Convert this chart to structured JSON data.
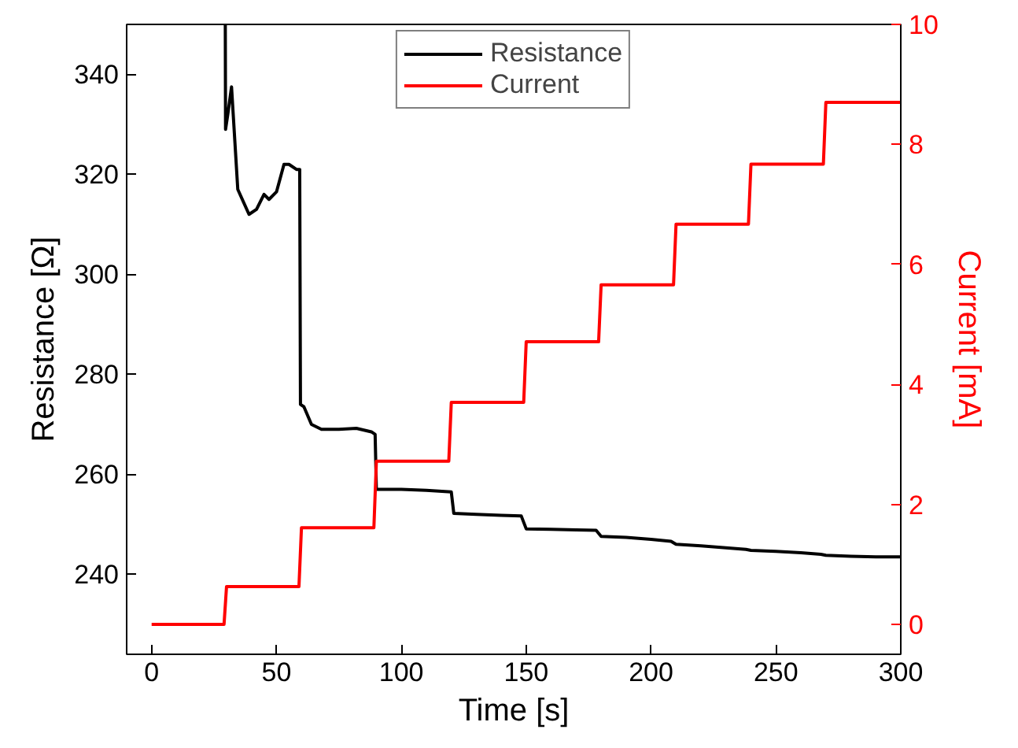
{
  "chart_data": {
    "type": "line",
    "xlabel": "Time [s]",
    "ylabel": "Resistance [Ω]",
    "y2label": "Current [mA]",
    "xlim": [
      -10,
      300
    ],
    "xticks": [
      0,
      50,
      100,
      150,
      200,
      250,
      300
    ],
    "ylim": [
      224,
      350
    ],
    "yticks": [
      240,
      260,
      280,
      300,
      320,
      340
    ],
    "y2lim": [
      -0.5,
      10
    ],
    "y2ticks": [
      0,
      2,
      4,
      6,
      8,
      10
    ],
    "legend": "top",
    "grid": false,
    "series": [
      {
        "name": "Resistance",
        "color": "#000000",
        "x": [
          29.5,
          29.6,
          30.5,
          32,
          34.5,
          39,
          42,
          45,
          47,
          50,
          53,
          55,
          58,
          59.3,
          59.6,
          61,
          64,
          68,
          75,
          82,
          88,
          89.5,
          90,
          100,
          110,
          120,
          121,
          130,
          140,
          148,
          150,
          160,
          170,
          178,
          180,
          190,
          200,
          208,
          210,
          220,
          230,
          238,
          240,
          250,
          260,
          268,
          270,
          280,
          290,
          300
        ],
        "values": [
          350,
          329,
          332,
          337.5,
          317,
          312,
          313,
          316,
          315,
          316.5,
          322,
          322,
          321,
          321,
          274,
          273.5,
          270,
          269,
          269,
          269.2,
          268.5,
          268,
          257,
          257,
          256.8,
          256.5,
          252.2,
          252,
          251.8,
          251.7,
          249.1,
          249,
          248.9,
          248.8,
          247.6,
          247.4,
          247,
          246.6,
          246,
          245.7,
          245.3,
          245,
          244.8,
          244.6,
          244.3,
          244,
          243.8,
          243.6,
          243.5,
          243.5
        ]
      },
      {
        "name": "Current",
        "color": "#ff0000",
        "axis": "y2",
        "x": [
          0,
          29,
          30,
          59,
          60,
          89,
          90,
          119,
          120,
          149,
          150,
          179,
          180,
          209,
          210,
          239,
          240,
          269,
          270,
          300
        ],
        "values": [
          0,
          0,
          0.63,
          0.63,
          1.61,
          1.61,
          2.72,
          2.72,
          3.7,
          3.7,
          4.71,
          4.71,
          5.66,
          5.66,
          6.67,
          6.67,
          7.67,
          7.67,
          8.7,
          8.7
        ]
      }
    ]
  }
}
